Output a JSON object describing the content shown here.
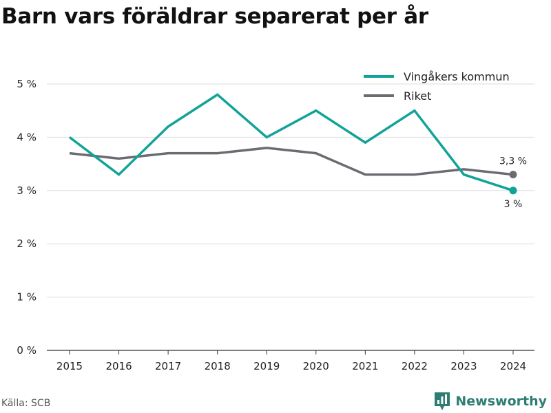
{
  "header": {
    "title": "Barn vars föräldrar separerat per år"
  },
  "footer": {
    "source": "Källa: SCB",
    "brand": "Newsworthy"
  },
  "colors": {
    "vingaker": "#12a398",
    "riket": "#6d6b72",
    "brand": "#2e7d74"
  },
  "icons": {
    "brand": "bar-chart-speech-bubble-icon"
  },
  "chart_data": {
    "type": "line",
    "title": "Barn vars föräldrar separerat per år",
    "x": [
      2015,
      2016,
      2017,
      2018,
      2019,
      2020,
      2021,
      2022,
      2023,
      2024
    ],
    "ylim": [
      0,
      5
    ],
    "yticks": [
      0,
      1,
      2,
      3,
      4,
      5
    ],
    "ytick_labels": [
      "0 %",
      "1 %",
      "2 %",
      "3 %",
      "4 %",
      "5 %"
    ],
    "grid": true,
    "legend_position": "top-right",
    "series": [
      {
        "name": "Vingåkers kommun",
        "values": [
          4.0,
          3.3,
          4.2,
          4.8,
          4.0,
          4.5,
          3.9,
          4.5,
          3.3,
          3.0
        ],
        "end_label": "3 %"
      },
      {
        "name": "Riket",
        "values": [
          3.7,
          3.6,
          3.7,
          3.7,
          3.8,
          3.7,
          3.3,
          3.3,
          3.4,
          3.3
        ],
        "end_label": "3,3 %"
      }
    ]
  }
}
